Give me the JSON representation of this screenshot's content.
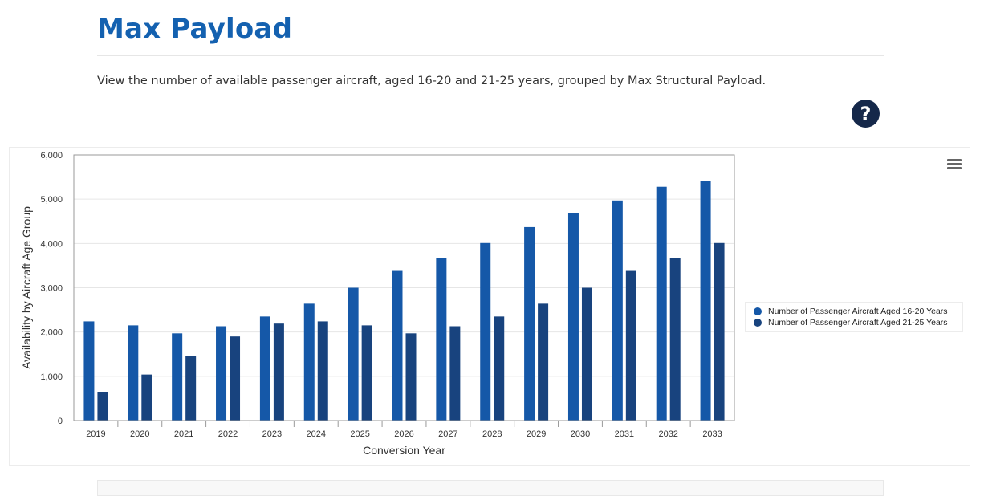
{
  "header": {
    "title": "Max Payload",
    "description": "View the number of available passenger aircraft, aged 16-20 and 21-25 years, grouped by Max Structural Payload.",
    "help_label": "?"
  },
  "chart_data": {
    "type": "bar",
    "title": "",
    "xlabel": "Conversion Year",
    "ylabel": "Availability by Aircraft Age Group",
    "ylim": [
      0,
      6000
    ],
    "yticks": [
      0,
      1000,
      2000,
      3000,
      4000,
      5000,
      6000
    ],
    "ytick_labels": [
      "0",
      "1,000",
      "2,000",
      "3,000",
      "4,000",
      "5,000",
      "6,000"
    ],
    "categories": [
      "2019",
      "2020",
      "2021",
      "2022",
      "2023",
      "2024",
      "2025",
      "2026",
      "2027",
      "2028",
      "2029",
      "2030",
      "2031",
      "2032",
      "2033"
    ],
    "series": [
      {
        "name": "Number of Passenger Aircraft Aged 16-20 Years",
        "color": "#1558a8",
        "values": [
          2240,
          2150,
          1970,
          2130,
          2350,
          2640,
          3000,
          3380,
          3670,
          4010,
          4370,
          4680,
          4970,
          5280,
          5410
        ]
      },
      {
        "name": "Number of Passenger Aircraft Aged 21-25 Years",
        "color": "#18437e",
        "values": [
          640,
          1040,
          1460,
          1900,
          2190,
          2240,
          2150,
          1970,
          2130,
          2350,
          2640,
          3000,
          3380,
          3670,
          4010
        ]
      }
    ],
    "grid": true,
    "legend": "right"
  }
}
